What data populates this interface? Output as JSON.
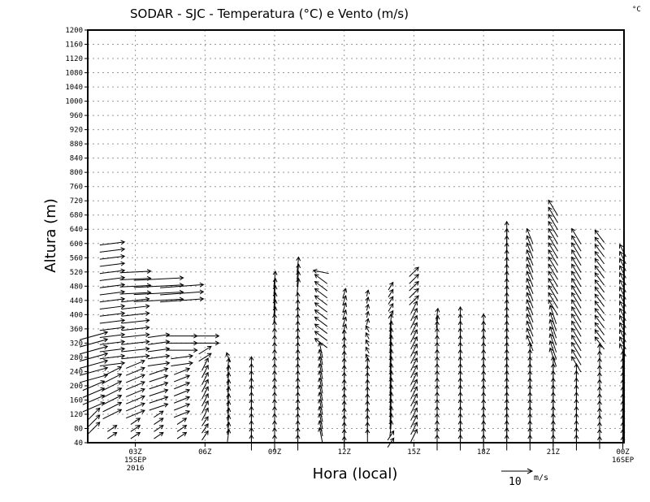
{
  "chart_data": {
    "type": "vector",
    "title": "SODAR - SJC - Temperatura (°C) e Vento (m/s)",
    "corner_unit": "°C",
    "xlabel": "Hora (local)",
    "ylabel": "Altura (m)",
    "xlim_hours": [
      0.95,
      24.05
    ],
    "ylim": [
      40,
      1200
    ],
    "grid": true,
    "yticks": [
      40,
      80,
      120,
      160,
      200,
      240,
      280,
      320,
      360,
      400,
      440,
      480,
      520,
      560,
      600,
      640,
      680,
      720,
      760,
      800,
      840,
      880,
      920,
      960,
      1000,
      1040,
      1080,
      1120,
      1160,
      1200
    ],
    "xticks": [
      {
        "hour": 3,
        "lines": [
          "03Z",
          "15SEP",
          "2016"
        ]
      },
      {
        "hour": 6,
        "lines": [
          "06Z"
        ]
      },
      {
        "hour": 9,
        "lines": [
          "09Z"
        ]
      },
      {
        "hour": 12,
        "lines": [
          "12Z"
        ]
      },
      {
        "hour": 15,
        "lines": [
          "15Z"
        ]
      },
      {
        "hour": 18,
        "lines": [
          "18Z"
        ]
      },
      {
        "hour": 21,
        "lines": [
          "21Z"
        ]
      },
      {
        "hour": 24,
        "lines": [
          "00Z",
          "16SEP"
        ]
      }
    ],
    "level_step_m": 20,
    "reference_vector": {
      "speed": 10,
      "label": "10",
      "unit": "m/s"
    },
    "columns_note": "segments: [bottom_m, top_m, u_ms, v_ms]",
    "columns": [
      {
        "hour": 1.2,
        "segments": [
          [
            80,
            120,
            4,
            4
          ],
          [
            140,
            200,
            7,
            3
          ],
          [
            220,
            340,
            9,
            2.5
          ]
        ]
      },
      {
        "hour": 2,
        "segments": [
          [
            60,
            80,
            3,
            2
          ],
          [
            120,
            240,
            6,
            3
          ],
          [
            260,
            600,
            8,
            1
          ]
        ]
      },
      {
        "hour": 3,
        "segments": [
          [
            60,
            100,
            3,
            2
          ],
          [
            120,
            260,
            6,
            2.5
          ],
          [
            280,
            440,
            9,
            1
          ],
          [
            460,
            520,
            10,
            0.5
          ]
        ]
      },
      {
        "hour": 4,
        "segments": [
          [
            60,
            120,
            3,
            2
          ],
          [
            140,
            240,
            6,
            2
          ],
          [
            260,
            340,
            7,
            1
          ],
          [
            440,
            500,
            16,
            0.8
          ]
        ]
      },
      {
        "hour": 5,
        "segments": [
          [
            60,
            100,
            3,
            2
          ],
          [
            120,
            240,
            5,
            2
          ],
          [
            260,
            280,
            7,
            1
          ],
          [
            300,
            340,
            10,
            0
          ],
          [
            440,
            480,
            14,
            1
          ]
        ]
      },
      {
        "hour": 6,
        "segments": [
          [
            60,
            100,
            2,
            3
          ],
          [
            120,
            260,
            2,
            4
          ],
          [
            280,
            300,
            4,
            2.5
          ],
          [
            320,
            340,
            9,
            0
          ]
        ]
      },
      {
        "hour": 7,
        "segments": [
          [
            60,
            260,
            0.5,
            4
          ],
          [
            280,
            280,
            -1,
            3
          ]
        ]
      },
      {
        "hour": 8,
        "segments": [
          [
            40,
            260,
            0,
            5
          ]
        ]
      },
      {
        "hour": 9,
        "segments": [
          [
            40,
            380,
            0,
            5
          ],
          [
            400,
            500,
            0.5,
            5
          ]
        ]
      },
      {
        "hour": 10,
        "segments": [
          [
            40,
            440,
            0,
            5
          ],
          [
            480,
            540,
            0.5,
            5
          ]
        ]
      },
      {
        "hour": 11,
        "segments": [
          [
            60,
            300,
            -1,
            5
          ],
          [
            320,
            500,
            -4,
            3
          ],
          [
            520,
            520,
            -5,
            1
          ]
        ]
      },
      {
        "hour": 12,
        "segments": [
          [
            40,
            340,
            0,
            4
          ],
          [
            360,
            460,
            1,
            3
          ]
        ]
      },
      {
        "hour": 13,
        "segments": [
          [
            60,
            260,
            0,
            4
          ],
          [
            280,
            360,
            -1,
            2
          ],
          [
            380,
            460,
            0.5,
            2
          ]
        ]
      },
      {
        "hour": 14,
        "segments": [
          [
            40,
            60,
            2,
            3
          ],
          [
            80,
            380,
            0.5,
            5
          ],
          [
            400,
            480,
            1.5,
            2.5
          ]
        ]
      },
      {
        "hour": 15,
        "segments": [
          [
            60,
            420,
            2,
            4
          ],
          [
            440,
            520,
            3,
            3
          ]
        ]
      },
      {
        "hour": 16,
        "segments": [
          [
            40,
            360,
            0,
            5
          ],
          [
            380,
            400,
            0.5,
            4
          ]
        ]
      },
      {
        "hour": 17,
        "segments": [
          [
            40,
            400,
            0,
            5
          ]
        ]
      },
      {
        "hour": 18,
        "segments": [
          [
            40,
            380,
            0,
            5
          ]
        ]
      },
      {
        "hour": 19,
        "segments": [
          [
            40,
            640,
            0,
            5
          ]
        ]
      },
      {
        "hour": 20,
        "segments": [
          [
            40,
            300,
            0,
            5
          ],
          [
            320,
            620,
            -2,
            5
          ]
        ]
      },
      {
        "hour": 21,
        "segments": [
          [
            40,
            260,
            0,
            5
          ],
          [
            280,
            400,
            -2,
            6
          ],
          [
            420,
            700,
            -3,
            5
          ]
        ]
      },
      {
        "hour": 22,
        "segments": [
          [
            40,
            240,
            0,
            5
          ],
          [
            260,
            620,
            -3,
            5
          ]
        ]
      },
      {
        "hour": 23,
        "segments": [
          [
            40,
            300,
            0,
            4
          ],
          [
            320,
            620,
            -3,
            4
          ]
        ]
      },
      {
        "hour": 24,
        "segments": [
          [
            40,
            280,
            0,
            4
          ],
          [
            300,
            580,
            -2,
            4
          ]
        ]
      }
    ]
  }
}
